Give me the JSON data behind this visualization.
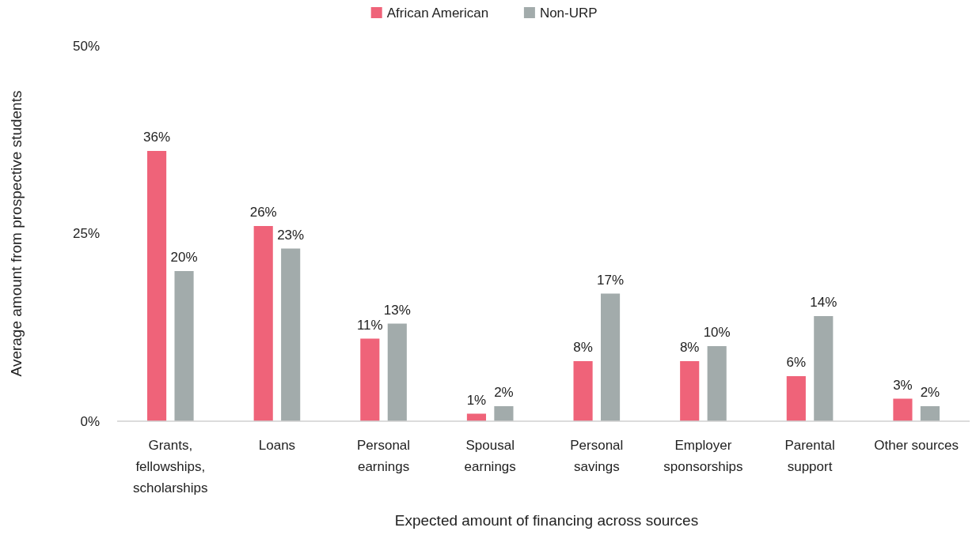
{
  "chart_data": {
    "type": "bar",
    "xlabel": "Expected amount of financing across sources",
    "ylabel": "Average amount from prospective students",
    "categories": [
      "Grants, fellowships, scholarships",
      "Loans",
      "Personal earnings",
      "Spousal earnings",
      "Personal savings",
      "Employer sponsorships",
      "Parental support",
      "Other sources"
    ],
    "series": [
      {
        "name": "African American",
        "color": "#ef6379",
        "values": [
          36,
          26,
          11,
          1,
          8,
          8,
          6,
          3
        ],
        "value_labels": [
          "36%",
          "26%",
          "11%",
          "1%",
          "8%",
          "8%",
          "6%",
          "3%"
        ]
      },
      {
        "name": "Non-URP",
        "color": "#a2abab",
        "values": [
          20,
          23,
          13,
          2,
          17,
          10,
          14,
          2
        ],
        "value_labels": [
          "20%",
          "23%",
          "13%",
          "2%",
          "17%",
          "10%",
          "14%",
          "2%"
        ]
      }
    ],
    "ylim": [
      0,
      50
    ],
    "yticks": [
      {
        "value": 0,
        "label": "0%"
      },
      {
        "value": 25,
        "label": "25%"
      },
      {
        "value": 50,
        "label": "50%"
      }
    ],
    "legend": "top",
    "grid": false
  }
}
